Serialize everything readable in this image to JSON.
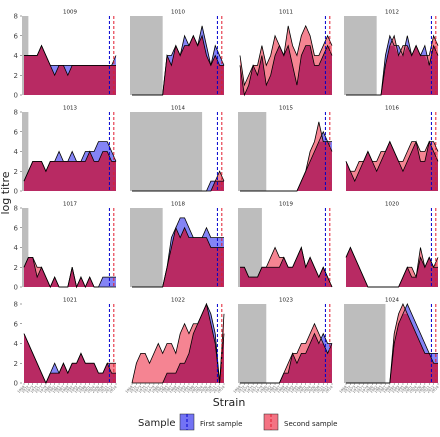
{
  "chart_data": {
    "type": "area",
    "ylabel": "log titre",
    "xlabel": "Strain",
    "y_ticks": [
      0,
      2,
      4,
      6,
      8
    ],
    "ylim": [
      0,
      8
    ],
    "grid": false,
    "legend": {
      "title": "Sample",
      "placement": "bottom",
      "entries": [
        "First sample",
        "Second sample"
      ]
    },
    "colors": {
      "first": "#5b5bf2",
      "second": "#f25b6d",
      "overlap": "#b5235e",
      "shade": "#bdbdbd",
      "line_first": "#0000cc",
      "line_second": "#e01b2e"
    },
    "x_tick_labels": [
      "1968",
      "1972",
      "1973",
      "1975",
      "1977",
      "1979",
      "1980",
      "1982",
      "1985",
      "1987",
      "1989",
      "1992",
      "1993",
      "1995",
      "1998",
      "2001",
      "2004",
      "2006",
      "2008",
      "2011",
      "2012",
      "2014"
    ],
    "panels": [
      {
        "title": "1009",
        "shade_to": 1,
        "vline_first": 19.5,
        "vline_second": 20.5,
        "first": [
          4,
          4,
          4,
          4,
          5,
          4,
          3,
          3,
          3,
          3,
          3,
          3,
          3,
          3,
          3,
          3,
          3,
          3,
          3,
          3,
          3,
          4
        ],
        "second": [
          4,
          4,
          4,
          4,
          5,
          4,
          3,
          2,
          3,
          3,
          2,
          3,
          3,
          3,
          3,
          3,
          3,
          3,
          3,
          3,
          3,
          3
        ]
      },
      {
        "title": "1010",
        "shade_to": 7,
        "vline_first": 19.5,
        "vline_second": 20.5,
        "first": [
          0,
          0,
          0,
          0,
          0,
          0,
          0,
          0,
          4,
          4,
          5,
          4,
          6,
          5,
          6,
          5,
          7,
          5,
          3,
          5,
          4,
          3
        ],
        "second": [
          0,
          0,
          0,
          0,
          0,
          0,
          0,
          0,
          4,
          3,
          5,
          4,
          5,
          5,
          6,
          5,
          6,
          4,
          3,
          4,
          3,
          3
        ]
      },
      {
        "title": "1011",
        "shade_to": 0,
        "vline_first": 19.5,
        "vline_second": 20.5,
        "first": [
          3,
          0,
          1,
          3,
          2,
          4,
          1,
          2,
          4,
          5,
          4,
          5,
          3,
          1,
          4,
          5,
          5,
          3,
          3,
          4,
          5,
          4
        ],
        "second": [
          4,
          1,
          2,
          3,
          3,
          5,
          3,
          4,
          6,
          5,
          4,
          7,
          5,
          4,
          6,
          7,
          6,
          4,
          4,
          5,
          6,
          5
        ]
      },
      {
        "title": "1012",
        "shade_to": 7,
        "vline_first": 19.5,
        "vline_second": 20.5,
        "first": [
          0,
          0,
          0,
          0,
          0,
          0,
          0,
          0,
          0,
          4,
          6,
          5,
          5,
          4,
          6,
          4,
          5,
          4,
          5,
          3,
          5,
          4
        ],
        "second": [
          0,
          0,
          0,
          0,
          0,
          0,
          0,
          0,
          0,
          3,
          5,
          6,
          4,
          5,
          5,
          4,
          5,
          4,
          4,
          4,
          6,
          5
        ]
      },
      {
        "title": "1013",
        "shade_to": 1,
        "vline_first": 19.5,
        "vline_second": 20.5,
        "first": [
          1,
          2,
          3,
          3,
          3,
          2,
          3,
          3,
          4,
          3,
          3,
          4,
          3,
          3,
          4,
          4,
          4,
          5,
          5,
          5,
          4,
          3
        ],
        "second": [
          1,
          2,
          3,
          3,
          3,
          2,
          3,
          3,
          3,
          3,
          3,
          3,
          3,
          3,
          3,
          4,
          3,
          3,
          4,
          4,
          3,
          3
        ]
      },
      {
        "title": "1014",
        "shade_to": 16,
        "vline_first": 19.5,
        "vline_second": 20.5,
        "first": [
          0,
          0,
          0,
          0,
          0,
          0,
          0,
          0,
          0,
          0,
          0,
          0,
          0,
          0,
          0,
          0,
          0,
          0,
          1,
          1,
          1,
          1
        ],
        "second": [
          0,
          0,
          0,
          0,
          0,
          0,
          0,
          0,
          0,
          0,
          0,
          0,
          0,
          0,
          0,
          0,
          0,
          0,
          0,
          1,
          2,
          1
        ]
      },
      {
        "title": "1015",
        "shade_to": 6,
        "vline_first": 19.5,
        "vline_second": 20.5,
        "first": [
          0,
          0,
          0,
          0,
          0,
          0,
          0,
          0,
          0,
          0,
          0,
          0,
          0,
          0,
          1,
          2,
          3,
          4,
          5,
          6,
          5,
          5
        ],
        "second": [
          0,
          0,
          0,
          0,
          0,
          0,
          0,
          0,
          0,
          0,
          0,
          0,
          0,
          0,
          1,
          2,
          4,
          5,
          7,
          5,
          5,
          4
        ]
      },
      {
        "title": "1016",
        "shade_to": 0,
        "vline_first": 19.5,
        "vline_second": 20.5,
        "first": [
          3,
          2,
          1,
          2,
          3,
          4,
          3,
          2,
          3,
          4,
          5,
          4,
          3,
          2,
          3,
          4,
          5,
          3,
          3,
          5,
          4,
          3
        ],
        "second": [
          3,
          2,
          2,
          3,
          3,
          4,
          3,
          3,
          4,
          4,
          5,
          4,
          3,
          3,
          4,
          5,
          5,
          4,
          4,
          5,
          5,
          4
        ]
      },
      {
        "title": "1017",
        "shade_to": 1,
        "vline_first": 19.5,
        "vline_second": 20.5,
        "first": [
          2,
          3,
          3,
          1,
          2,
          1,
          0,
          1,
          0,
          0,
          0,
          2,
          0,
          1,
          0,
          1,
          0,
          0,
          1,
          1,
          1,
          1
        ],
        "second": [
          2,
          3,
          3,
          2,
          2,
          1,
          0,
          1,
          0,
          0,
          0,
          2,
          0,
          1,
          0,
          1,
          0,
          0,
          0,
          0,
          0,
          0
        ]
      },
      {
        "title": "1018",
        "shade_to": 7,
        "vline_first": 19.5,
        "vline_second": 20.5,
        "first": [
          0,
          0,
          0,
          0,
          0,
          0,
          0,
          0,
          2,
          5,
          6,
          7,
          7,
          6,
          5,
          5,
          5,
          6,
          5,
          5,
          5,
          5
        ],
        "second": [
          0,
          0,
          0,
          0,
          0,
          0,
          0,
          0,
          2,
          4,
          6,
          5,
          6,
          5,
          5,
          5,
          5,
          5,
          4,
          4,
          4,
          4
        ]
      },
      {
        "title": "1019",
        "shade_to": 5,
        "vline_first": 19.5,
        "vline_second": 20.5,
        "first": [
          2,
          2,
          1,
          1,
          1,
          2,
          2,
          2,
          2,
          2,
          3,
          2,
          2,
          3,
          4,
          2,
          3,
          2,
          1,
          2,
          1,
          0
        ],
        "second": [
          2,
          2,
          1,
          1,
          1,
          2,
          2,
          3,
          4,
          3,
          3,
          2,
          2,
          3,
          4,
          2,
          3,
          2,
          1,
          2,
          1,
          0
        ]
      },
      {
        "title": "1020",
        "shade_to": 0,
        "vline_first": 19.5,
        "vline_second": 20.5,
        "first": [
          3,
          4,
          3,
          2,
          1,
          0,
          0,
          0,
          0,
          0,
          0,
          0,
          0,
          1,
          2,
          1,
          1,
          3,
          2,
          3,
          2,
          2
        ],
        "second": [
          3,
          4,
          3,
          2,
          1,
          0,
          0,
          0,
          0,
          0,
          0,
          0,
          0,
          1,
          2,
          2,
          1,
          4,
          2,
          3,
          2,
          3
        ]
      },
      {
        "title": "1021",
        "shade_to": 0,
        "vline_first": 19.5,
        "vline_second": 20.5,
        "first": [
          5,
          4,
          3,
          2,
          1,
          0,
          1,
          2,
          1,
          2,
          1,
          2,
          2,
          3,
          2,
          2,
          2,
          1,
          1,
          2,
          1,
          1
        ],
        "second": [
          5,
          4,
          3,
          2,
          1,
          0,
          1,
          1,
          1,
          2,
          1,
          2,
          2,
          3,
          2,
          2,
          2,
          1,
          1,
          2,
          2,
          2
        ]
      },
      {
        "title": "1022",
        "shade_to": 0,
        "vline_first": 19.5,
        "vline_second": 20.5,
        "first": [
          0,
          0,
          0,
          0,
          0,
          0,
          0,
          0,
          1,
          1,
          1,
          2,
          2,
          3,
          5,
          6,
          7,
          8,
          7,
          5,
          0,
          5
        ],
        "second": [
          0,
          2,
          3,
          3,
          2,
          3,
          4,
          3,
          4,
          4,
          3,
          5,
          6,
          5,
          6,
          6,
          7,
          8,
          6,
          4,
          0,
          7
        ]
      },
      {
        "title": "1023",
        "shade_to": 6,
        "vline_first": 19.5,
        "vline_second": 20.5,
        "first": [
          0,
          0,
          0,
          0,
          0,
          0,
          0,
          0,
          0,
          0,
          1,
          1,
          3,
          2,
          3,
          3,
          4,
          5,
          4,
          5,
          4,
          4
        ],
        "second": [
          0,
          0,
          0,
          0,
          0,
          0,
          0,
          0,
          0,
          0,
          1,
          2,
          3,
          3,
          4,
          4,
          5,
          6,
          5,
          4,
          3,
          4
        ]
      },
      {
        "title": "1024",
        "shade_to": 9,
        "vline_first": 19.5,
        "vline_second": 20.5,
        "first": [
          0,
          0,
          0,
          0,
          0,
          0,
          0,
          0,
          0,
          0,
          0,
          4,
          6,
          7,
          8,
          7,
          6,
          5,
          4,
          3,
          3,
          3
        ],
        "second": [
          0,
          0,
          0,
          0,
          0,
          0,
          0,
          0,
          0,
          0,
          0,
          5,
          7,
          8,
          7,
          6,
          5,
          4,
          3,
          3,
          2,
          2
        ]
      }
    ]
  }
}
